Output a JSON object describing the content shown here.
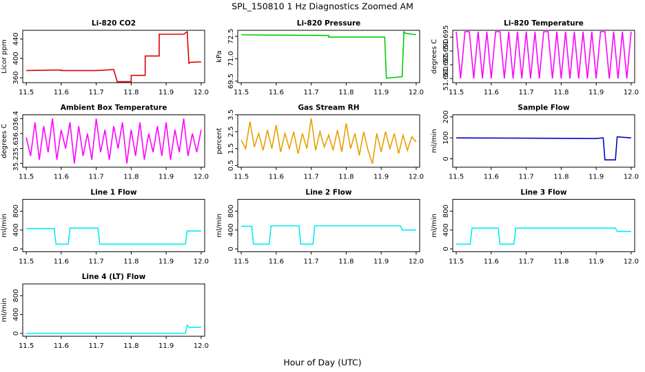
{
  "title": "SPL_150810  1 Hz Diagnostics Zoomed AM",
  "xlabel": "Hour of Day (UTC)",
  "chart_data": [
    {
      "type": "line",
      "title": "Li-820 CO2",
      "ylabel": "Licor ppm",
      "color": "#dd0000",
      "x": [
        11.5,
        11.58,
        11.6,
        11.6,
        11.7,
        11.75,
        11.76,
        11.8,
        11.8,
        11.84,
        11.84,
        11.88,
        11.88,
        11.95,
        11.96,
        11.965,
        11.97,
        12.0
      ],
      "values": [
        375,
        376,
        376,
        375,
        375,
        377,
        352,
        352,
        365,
        365,
        405,
        405,
        450,
        450,
        455,
        390,
        392,
        393
      ],
      "xlim": [
        11.49,
        12.01
      ],
      "xticks": [
        11.5,
        11.6,
        11.7,
        11.8,
        11.9,
        {
          "value": 12,
          "label": "12.0"
        }
      ],
      "ylim": [
        350,
        458
      ],
      "yticks": [
        360,
        400,
        440
      ]
    },
    {
      "type": "line",
      "title": "Li-820 Pressure",
      "ylabel": "kPa",
      "color": "#00cc00",
      "x": [
        11.5,
        11.75,
        11.75,
        11.91,
        11.915,
        11.96,
        11.965,
        11.97,
        12.0
      ],
      "values": [
        72.6,
        72.55,
        72.45,
        72.45,
        69.7,
        69.8,
        72.8,
        72.7,
        72.6
      ],
      "xlim": [
        11.49,
        12.01
      ],
      "xticks": [
        11.5,
        11.6,
        11.7,
        11.8,
        11.9,
        {
          "value": 12,
          "label": "12.0"
        }
      ],
      "ylim": [
        69.4,
        72.9
      ],
      "yticks": [
        69.5,
        {
          "value": 71,
          "label": "71.0"
        },
        72.5
      ]
    },
    {
      "type": "line",
      "title": "Li-820 Temperature",
      "ylabel": "degrees C",
      "color": "#ff00ff",
      "x": [
        11.5,
        11.5125,
        11.525,
        11.5375,
        11.55,
        11.5625,
        11.575,
        11.5875,
        11.6,
        11.6125,
        11.625,
        11.6375,
        11.65,
        11.6625,
        11.675,
        11.6875,
        11.7,
        11.7125,
        11.725,
        11.7375,
        11.75,
        11.7625,
        11.775,
        11.7875,
        11.8,
        11.8125,
        11.825,
        11.8375,
        11.85,
        11.8625,
        11.875,
        11.8875,
        11.9,
        11.9125,
        11.925,
        11.9375,
        11.95,
        11.9625,
        11.975,
        11.9875,
        12.0
      ],
      "values": [
        51.697,
        51.68,
        51.697,
        51.697,
        51.68,
        51.697,
        51.68,
        51.697,
        51.68,
        51.697,
        51.697,
        51.68,
        51.697,
        51.68,
        51.697,
        51.68,
        51.697,
        51.68,
        51.697,
        51.68,
        51.697,
        51.697,
        51.68,
        51.697,
        51.68,
        51.697,
        51.68,
        51.697,
        51.68,
        51.697,
        51.68,
        51.697,
        51.68,
        51.697,
        51.697,
        51.68,
        51.697,
        51.68,
        51.697,
        51.68,
        51.697
      ],
      "xlim": [
        11.49,
        12.01
      ],
      "xticks": [
        11.5,
        11.6,
        11.7,
        11.8,
        11.9,
        {
          "value": 12,
          "label": "12.0"
        }
      ],
      "ylim": [
        51.6785,
        51.6975
      ],
      "yticks": [
        {
          "value": 51.68,
          "label": "51.680"
        },
        51.685,
        {
          "value": 51.69,
          "label": "51.690"
        },
        51.695
      ]
    },
    {
      "type": "line",
      "title": "Ambient Box Temperature",
      "ylabel": "degrees C",
      "color": "#ff00ff",
      "x": [
        11.5,
        11.5125,
        11.525,
        11.5375,
        11.55,
        11.5625,
        11.575,
        11.5875,
        11.6,
        11.6125,
        11.625,
        11.6375,
        11.65,
        11.6625,
        11.675,
        11.6875,
        11.7,
        11.7125,
        11.725,
        11.7375,
        11.75,
        11.7625,
        11.775,
        11.7875,
        11.8,
        11.8125,
        11.825,
        11.8375,
        11.85,
        11.8625,
        11.875,
        11.8875,
        11.9,
        11.9125,
        11.925,
        11.9375,
        11.95,
        11.9625,
        11.975,
        11.9875,
        12.0
      ],
      "values": [
        35.9,
        35.4,
        36.3,
        35.3,
        36.2,
        35.5,
        36.4,
        35.3,
        36.1,
        35.6,
        36.3,
        35.2,
        36.2,
        35.4,
        36.0,
        35.3,
        36.4,
        35.5,
        36.1,
        35.3,
        36.2,
        35.6,
        36.3,
        35.2,
        36.1,
        35.4,
        36.3,
        35.3,
        36.0,
        35.5,
        36.2,
        35.4,
        36.3,
        35.3,
        36.1,
        35.5,
        36.4,
        35.4,
        36.0,
        35.5,
        36.1
      ],
      "xlim": [
        11.49,
        12.01
      ],
      "xticks": [
        11.5,
        11.6,
        11.7,
        11.8,
        11.9,
        {
          "value": 12,
          "label": "12.0"
        }
      ],
      "ylim": [
        35.1,
        36.5
      ],
      "yticks": [
        35.2,
        35.6,
        {
          "value": 36,
          "label": "36.0"
        },
        36.4
      ]
    },
    {
      "type": "line",
      "title": "Gas Stream RH",
      "ylabel": "percent",
      "color": "#e69f00",
      "x": [
        11.5,
        11.5125,
        11.525,
        11.5375,
        11.55,
        11.5625,
        11.575,
        11.5875,
        11.6,
        11.6125,
        11.625,
        11.6375,
        11.65,
        11.6625,
        11.675,
        11.6875,
        11.7,
        11.7125,
        11.725,
        11.7375,
        11.75,
        11.7625,
        11.775,
        11.7875,
        11.8,
        11.8125,
        11.825,
        11.8375,
        11.85,
        11.8625,
        11.875,
        11.8875,
        11.9,
        11.9125,
        11.925,
        11.9375,
        11.95,
        11.9625,
        11.975,
        11.9875,
        12.0
      ],
      "values": [
        2.0,
        1.5,
        3.1,
        1.6,
        2.4,
        1.4,
        2.6,
        1.5,
        2.9,
        1.3,
        2.4,
        1.5,
        2.5,
        1.2,
        2.4,
        1.5,
        3.3,
        1.4,
        2.5,
        1.6,
        2.3,
        1.4,
        2.6,
        1.3,
        3.0,
        1.5,
        2.4,
        1.1,
        2.5,
        1.4,
        0.6,
        2.4,
        1.3,
        2.5,
        1.5,
        2.4,
        1.2,
        2.3,
        1.4,
        2.2,
        1.9
      ],
      "xlim": [
        11.49,
        12.01
      ],
      "xticks": [
        11.5,
        11.6,
        11.7,
        11.8,
        11.9,
        {
          "value": 12,
          "label": "12.0"
        }
      ],
      "ylim": [
        0.4,
        3.5
      ],
      "yticks": [
        0.5,
        1.5,
        2.5,
        3.5
      ]
    },
    {
      "type": "line",
      "title": "Sample Flow",
      "ylabel": "ml/min",
      "color": "#0000cc",
      "x": [
        11.5,
        11.9,
        11.92,
        11.925,
        11.955,
        11.96,
        12.0
      ],
      "values": [
        100,
        97,
        100,
        -5,
        -5,
        105,
        100
      ],
      "xlim": [
        11.49,
        12.01
      ],
      "xticks": [
        11.5,
        11.6,
        11.7,
        11.8,
        11.9,
        {
          "value": 12,
          "label": "12.0"
        }
      ],
      "ylim": [
        -40,
        210
      ],
      "yticks": [
        0,
        100,
        200
      ]
    },
    {
      "type": "line",
      "title": "Line 1 Flow",
      "ylabel": "ml/min",
      "color": "#00eeee",
      "x": [
        11.5,
        11.58,
        11.585,
        11.62,
        11.625,
        11.705,
        11.71,
        11.955,
        11.96,
        12.0
      ],
      "values": [
        430,
        430,
        100,
        100,
        440,
        440,
        100,
        100,
        380,
        380
      ],
      "xlim": [
        11.49,
        12.01
      ],
      "xticks": [
        11.5,
        11.6,
        11.7,
        11.8,
        11.9,
        {
          "value": 12,
          "label": "12.0"
        }
      ],
      "ylim": [
        -60,
        1050
      ],
      "yticks": [
        0,
        400,
        800
      ]
    },
    {
      "type": "line",
      "title": "Line 2 Flow",
      "ylabel": "ml/min",
      "color": "#00eeee",
      "x": [
        11.5,
        11.53,
        11.535,
        11.58,
        11.585,
        11.665,
        11.67,
        11.705,
        11.71,
        11.955,
        11.96,
        12.0
      ],
      "values": [
        480,
        480,
        100,
        100,
        490,
        490,
        100,
        100,
        490,
        490,
        400,
        400
      ],
      "xlim": [
        11.49,
        12.01
      ],
      "xticks": [
        11.5,
        11.6,
        11.7,
        11.8,
        11.9,
        {
          "value": 12,
          "label": "12.0"
        }
      ],
      "ylim": [
        -60,
        1050
      ],
      "yticks": [
        0,
        400,
        800
      ]
    },
    {
      "type": "line",
      "title": "Line 3 Flow",
      "ylabel": "ml/min",
      "color": "#00eeee",
      "x": [
        11.5,
        11.54,
        11.545,
        11.62,
        11.625,
        11.665,
        11.67,
        11.955,
        11.96,
        12.0
      ],
      "values": [
        100,
        100,
        440,
        440,
        100,
        100,
        440,
        440,
        370,
        370
      ],
      "xlim": [
        11.49,
        12.01
      ],
      "xticks": [
        11.5,
        11.6,
        11.7,
        11.8,
        11.9,
        {
          "value": 12,
          "label": "12.0"
        }
      ],
      "ylim": [
        -60,
        1050
      ],
      "yticks": [
        0,
        400,
        800
      ]
    },
    {
      "type": "line",
      "title": "Line 4 (LT) Flow",
      "ylabel": "ml/min",
      "color": "#00eeee",
      "x": [
        11.5,
        11.955,
        11.96,
        11.965,
        12.0
      ],
      "values": [
        0,
        0,
        170,
        130,
        130
      ],
      "xlim": [
        11.49,
        12.01
      ],
      "xticks": [
        11.5,
        11.6,
        11.7,
        11.8,
        11.9,
        {
          "value": 12,
          "label": "12.0"
        }
      ],
      "ylim": [
        -60,
        1050
      ],
      "yticks": [
        0,
        400,
        800
      ]
    }
  ]
}
